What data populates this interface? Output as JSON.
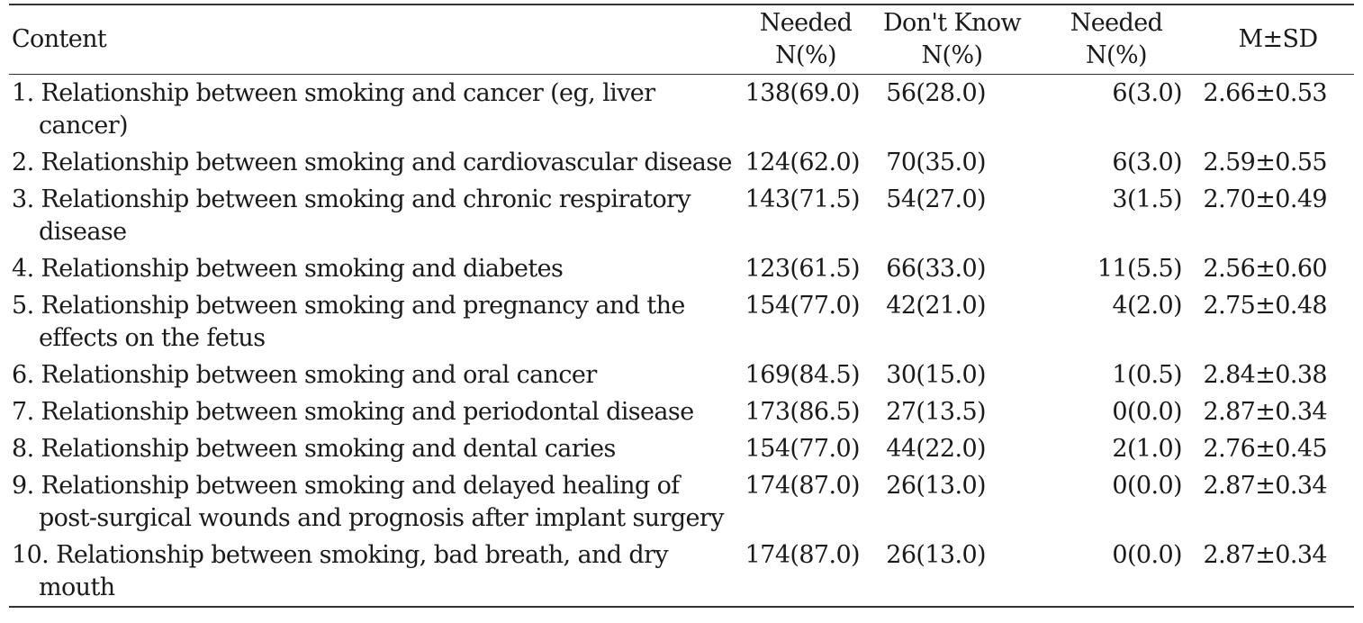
{
  "table": {
    "headers": {
      "content": "Content",
      "col1_line1": "Needed",
      "col1_line2": "N(%)",
      "col2_line1": "Don't Know",
      "col2_line2": "N(%)",
      "col3_line1": "Needed",
      "col3_line2": "N(%)",
      "col4": "M±SD"
    },
    "rows": [
      {
        "content": "1. Relationship between smoking and cancer (eg, liver cancer)",
        "needed": "138(69.0)",
        "dont_know": "56(28.0)",
        "not_needed": "6(3.0)",
        "msd": "2.66±0.53"
      },
      {
        "content": "2. Relationship between smoking and cardiovascular disease",
        "needed": "124(62.0)",
        "dont_know": "70(35.0)",
        "not_needed": "6(3.0)",
        "msd": "2.59±0.55"
      },
      {
        "content": "3. Relationship between smoking and chronic respiratory disease",
        "needed": "143(71.5)",
        "dont_know": "54(27.0)",
        "not_needed": "3(1.5)",
        "msd": "2.70±0.49"
      },
      {
        "content": "4. Relationship between smoking and diabetes",
        "needed": "123(61.5)",
        "dont_know": "66(33.0)",
        "not_needed": "11(5.5)",
        "msd": "2.56±0.60"
      },
      {
        "content": "5. Relationship between smoking and pregnancy and the effects on the fetus",
        "needed": "154(77.0)",
        "dont_know": "42(21.0)",
        "not_needed": "4(2.0)",
        "msd": "2.75±0.48"
      },
      {
        "content": "6. Relationship between smoking and oral cancer",
        "needed": "169(84.5)",
        "dont_know": "30(15.0)",
        "not_needed": "1(0.5)",
        "msd": "2.84±0.38"
      },
      {
        "content": "7. Relationship between smoking and periodontal disease",
        "needed": "173(86.5)",
        "dont_know": "27(13.5)",
        "not_needed": "0(0.0)",
        "msd": "2.87±0.34"
      },
      {
        "content": "8. Relationship between smoking and dental caries",
        "needed": "154(77.0)",
        "dont_know": "44(22.0)",
        "not_needed": "2(1.0)",
        "msd": "2.76±0.45"
      },
      {
        "content": "9. Relationship between smoking and delayed healing of post-surgical wounds and prognosis after implant surgery",
        "needed": "174(87.0)",
        "dont_know": "26(13.0)",
        "not_needed": "0(0.0)",
        "msd": "2.87±0.34"
      },
      {
        "content": "10. Relationship between smoking, bad breath, and dry mouth",
        "needed": "174(87.0)",
        "dont_know": "26(13.0)",
        "not_needed": "0(0.0)",
        "msd": "2.87±0.34"
      }
    ]
  }
}
